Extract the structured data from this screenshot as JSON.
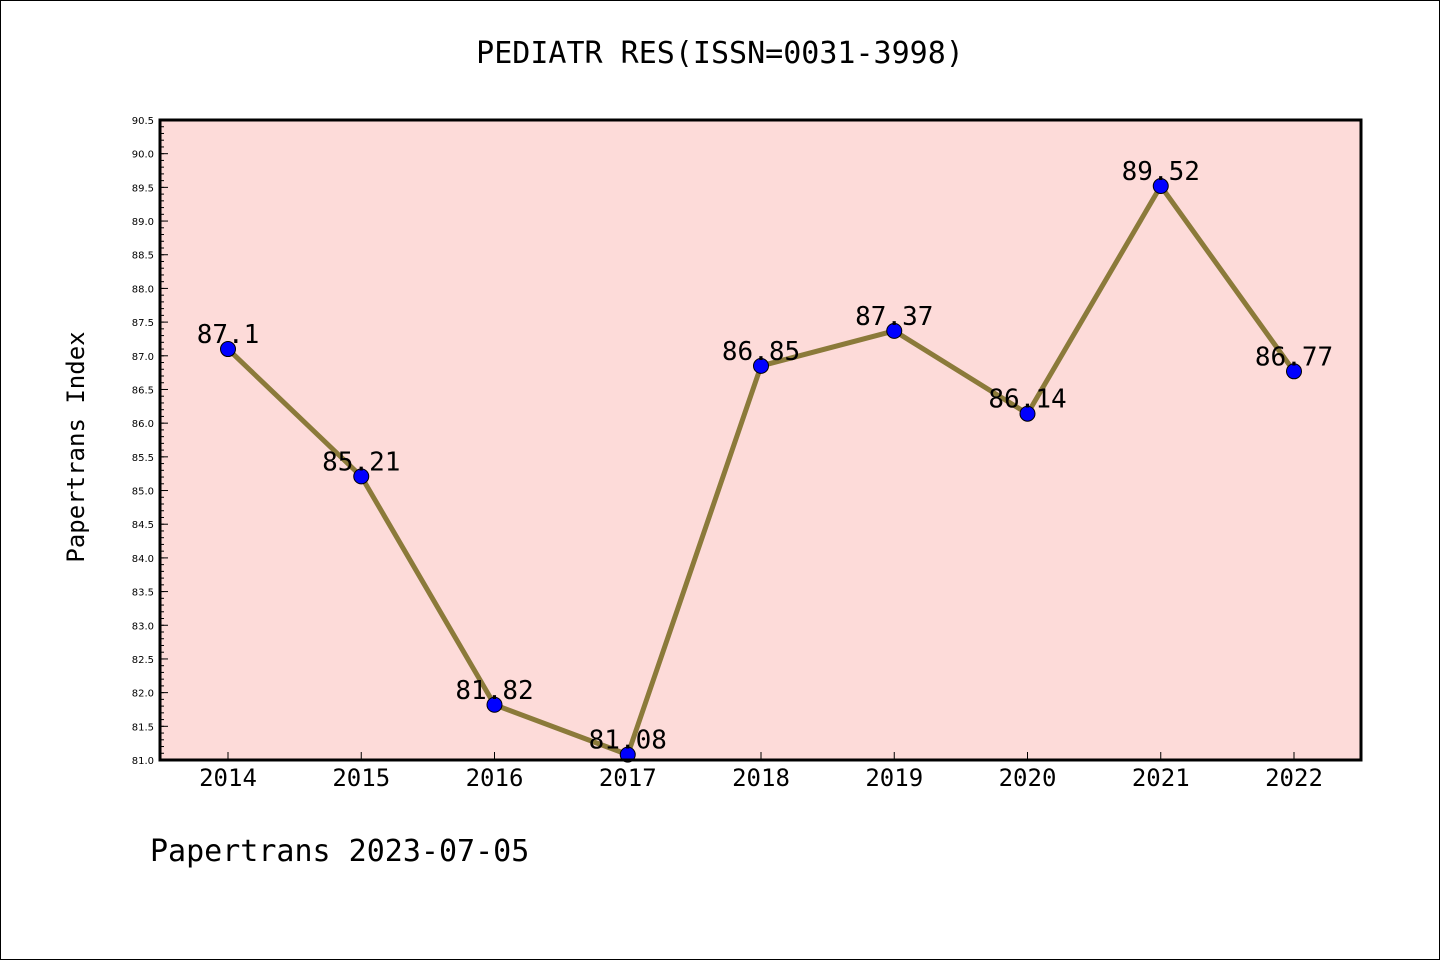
{
  "title": "PEDIATR RES(ISSN=0031-3998)",
  "footer": "Papertrans 2023-07-05",
  "colors": {
    "plot_bg": "#fddbd9",
    "line": "#8b7a3a",
    "marker": "#0000ff"
  },
  "chart_data": {
    "type": "line",
    "title": "PEDIATR RES(ISSN=0031-3998)",
    "xlabel": "",
    "ylabel": "Papertrans Index",
    "x": [
      "2014",
      "2015",
      "2016",
      "2017",
      "2018",
      "2019",
      "2020",
      "2021",
      "2022"
    ],
    "series": [
      {
        "values": [
          87.1,
          85.21,
          81.82,
          81.08,
          86.85,
          87.37,
          86.14,
          89.52,
          86.77
        ]
      }
    ],
    "data_labels": [
      "87.1",
      "85.21",
      "81.82",
      "81.08",
      "86.85",
      "87.37",
      "86.14",
      "89.52",
      "86.77"
    ],
    "ylim": [
      81.0,
      90.5
    ],
    "yticks": [
      "81.0",
      "81.5",
      "82.0",
      "82.5",
      "83.0",
      "83.5",
      "84.0",
      "84.5",
      "85.0",
      "85.5",
      "86.0",
      "86.5",
      "87.0",
      "87.5",
      "88.0",
      "88.5",
      "89.0",
      "89.5",
      "90.0",
      "90.5"
    ],
    "grid": false,
    "legend": "none"
  }
}
